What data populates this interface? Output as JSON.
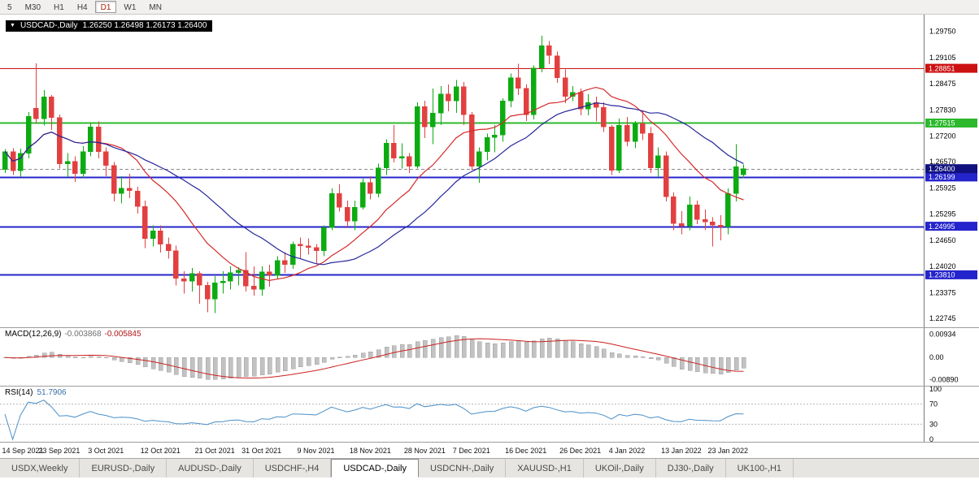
{
  "toolbar": {
    "periods": [
      "5",
      "M30",
      "H1",
      "H4",
      "D1",
      "W1",
      "MN"
    ],
    "active": "D1"
  },
  "chart": {
    "title": "USDCAD-,Daily",
    "ohlc": "1.26250  1.26498  1.26173  1.26400"
  },
  "chart_data": {
    "type": "candlestick",
    "symbol": "USDCAD",
    "timeframe": "Daily",
    "open": "1.26250",
    "high": "1.26498",
    "low": "1.26173",
    "close": "1.26400",
    "price_axis": {
      "max": 1.3016,
      "min": 1.2253,
      "tick_labels": [
        "1.29750",
        "1.29105",
        "1.28475",
        "1.27830",
        "1.27200",
        "1.26570",
        "1.25925",
        "1.25295",
        "1.24650",
        "1.24020",
        "1.23375",
        "1.22745"
      ],
      "tick_values": [
        1.2975,
        1.29105,
        1.28475,
        1.2783,
        1.272,
        1.2657,
        1.25925,
        1.25295,
        1.2465,
        1.2402,
        1.23375,
        1.22745
      ]
    },
    "x_axis": {
      "labels": [
        {
          "text": "14 Sep 2021",
          "bar": 0
        },
        {
          "text": "23 Sep 2021",
          "bar": 7
        },
        {
          "text": "3 Oct 2021",
          "bar": 13
        },
        {
          "text": "12 Oct 2021",
          "bar": 20
        },
        {
          "text": "21 Oct 2021",
          "bar": 27
        },
        {
          "text": "31 Oct 2021",
          "bar": 33
        },
        {
          "text": "9 Nov 2021",
          "bar": 40
        },
        {
          "text": "18 Nov 2021",
          "bar": 47
        },
        {
          "text": "28 Nov 2021",
          "bar": 54
        },
        {
          "text": "7 Dec 2021",
          "bar": 60
        },
        {
          "text": "16 Dec 2021",
          "bar": 67
        },
        {
          "text": "26 Dec 2021",
          "bar": 74
        },
        {
          "text": "4 Jan 2022",
          "bar": 80
        },
        {
          "text": "13 Jan 2022",
          "bar": 87
        },
        {
          "text": "23 Jan 2022",
          "bar": 93
        }
      ]
    },
    "candles": [
      [
        1.2638,
        1.2688,
        1.263,
        1.2682
      ],
      [
        1.2682,
        1.269,
        1.2625,
        1.2635
      ],
      [
        1.2635,
        1.2689,
        1.262,
        1.2678
      ],
      [
        1.2678,
        1.2778,
        1.2665,
        1.2768
      ],
      [
        1.2788,
        1.2897,
        1.275,
        1.2762
      ],
      [
        1.2762,
        1.2832,
        1.2745,
        1.2815
      ],
      [
        1.2815,
        1.282,
        1.2735,
        1.2765
      ],
      [
        1.2765,
        1.2772,
        1.264,
        1.2652
      ],
      [
        1.2652,
        1.2678,
        1.262,
        1.2658
      ],
      [
        1.2658,
        1.267,
        1.2608,
        1.2628
      ],
      [
        1.2628,
        1.2695,
        1.2618,
        1.2682
      ],
      [
        1.2682,
        1.2752,
        1.267,
        1.2742
      ],
      [
        1.2742,
        1.2755,
        1.2665,
        1.2682
      ],
      [
        1.2682,
        1.2692,
        1.2622,
        1.2648
      ],
      [
        1.2648,
        1.2656,
        1.256,
        1.258
      ],
      [
        1.258,
        1.2622,
        1.2555,
        1.2592
      ],
      [
        1.2592,
        1.2628,
        1.2568,
        1.2586
      ],
      [
        1.2586,
        1.2596,
        1.253,
        1.2548
      ],
      [
        1.2548,
        1.2562,
        1.2446,
        1.247
      ],
      [
        1.247,
        1.2502,
        1.245,
        1.2488
      ],
      [
        1.2488,
        1.2502,
        1.2435,
        1.2456
      ],
      [
        1.2456,
        1.2472,
        1.242,
        1.244
      ],
      [
        1.244,
        1.2452,
        1.2355,
        1.2372
      ],
      [
        1.2372,
        1.239,
        1.2335,
        1.2366
      ],
      [
        1.2366,
        1.2398,
        1.234,
        1.2384
      ],
      [
        1.2384,
        1.239,
        1.231,
        1.2356
      ],
      [
        1.2356,
        1.2364,
        1.229,
        1.2322
      ],
      [
        1.2322,
        1.2378,
        1.2288,
        1.2362
      ],
      [
        1.2362,
        1.239,
        1.2335,
        1.2366
      ],
      [
        1.2366,
        1.2402,
        1.2345,
        1.2386
      ],
      [
        1.2386,
        1.24,
        1.2355,
        1.2392
      ],
      [
        1.2392,
        1.2436,
        1.234,
        1.2354
      ],
      [
        1.2354,
        1.2402,
        1.233,
        1.2346
      ],
      [
        1.2346,
        1.2402,
        1.233,
        1.2388
      ],
      [
        1.2388,
        1.2406,
        1.2352,
        1.238
      ],
      [
        1.238,
        1.2426,
        1.237,
        1.2416
      ],
      [
        1.2416,
        1.2436,
        1.2386,
        1.2406
      ],
      [
        1.2406,
        1.2462,
        1.2396,
        1.2456
      ],
      [
        1.2456,
        1.2472,
        1.242,
        1.2452
      ],
      [
        1.2452,
        1.247,
        1.243,
        1.2448
      ],
      [
        1.2448,
        1.2456,
        1.2408,
        1.244
      ],
      [
        1.244,
        1.2502,
        1.2426,
        1.2496
      ],
      [
        1.2496,
        1.2592,
        1.249,
        1.258
      ],
      [
        1.258,
        1.2602,
        1.2535,
        1.2546
      ],
      [
        1.2546,
        1.2562,
        1.2495,
        1.2512
      ],
      [
        1.2512,
        1.2562,
        1.249,
        1.2546
      ],
      [
        1.2546,
        1.2616,
        1.254,
        1.2606
      ],
      [
        1.2606,
        1.2622,
        1.2565,
        1.258
      ],
      [
        1.258,
        1.2652,
        1.257,
        1.2642
      ],
      [
        1.2642,
        1.2712,
        1.2625,
        1.2702
      ],
      [
        1.2702,
        1.2746,
        1.2655,
        1.2666
      ],
      [
        1.2666,
        1.2702,
        1.264,
        1.267
      ],
      [
        1.267,
        1.2678,
        1.263,
        1.2646
      ],
      [
        1.2646,
        1.2802,
        1.264,
        1.2792
      ],
      [
        1.2792,
        1.2806,
        1.2715,
        1.2742
      ],
      [
        1.2742,
        1.2836,
        1.27,
        1.2776
      ],
      [
        1.2776,
        1.2842,
        1.2746,
        1.2822
      ],
      [
        1.2822,
        1.2846,
        1.278,
        1.2806
      ],
      [
        1.2806,
        1.2856,
        1.2776,
        1.284
      ],
      [
        1.284,
        1.2852,
        1.2746,
        1.2772
      ],
      [
        1.2772,
        1.2778,
        1.2636,
        1.2646
      ],
      [
        1.2646,
        1.2692,
        1.2606,
        1.2682
      ],
      [
        1.2682,
        1.2726,
        1.266,
        1.2716
      ],
      [
        1.2716,
        1.2746,
        1.268,
        1.2722
      ],
      [
        1.2722,
        1.2812,
        1.2706,
        1.2806
      ],
      [
        1.2806,
        1.2872,
        1.279,
        1.2862
      ],
      [
        1.2862,
        1.2896,
        1.282,
        1.2836
      ],
      [
        1.2836,
        1.2846,
        1.2756,
        1.2772
      ],
      [
        1.2772,
        1.2892,
        1.276,
        1.2886
      ],
      [
        1.2886,
        1.2964,
        1.2875,
        1.294
      ],
      [
        1.294,
        1.2952,
        1.2895,
        1.2916
      ],
      [
        1.2916,
        1.2926,
        1.285,
        1.2862
      ],
      [
        1.2862,
        1.2882,
        1.28,
        1.2816
      ],
      [
        1.2816,
        1.2842,
        1.2805,
        1.2826
      ],
      [
        1.2826,
        1.2836,
        1.277,
        1.2786
      ],
      [
        1.2786,
        1.2822,
        1.277,
        1.2802
      ],
      [
        1.2802,
        1.2816,
        1.2755,
        1.279
      ],
      [
        1.279,
        1.2802,
        1.273,
        1.2742
      ],
      [
        1.2742,
        1.2746,
        1.2625,
        1.2636
      ],
      [
        1.2636,
        1.2762,
        1.263,
        1.2746
      ],
      [
        1.2746,
        1.2766,
        1.2695,
        1.2706
      ],
      [
        1.2706,
        1.2756,
        1.269,
        1.275
      ],
      [
        1.275,
        1.2782,
        1.271,
        1.2726
      ],
      [
        1.2726,
        1.2742,
        1.263,
        1.2642
      ],
      [
        1.2642,
        1.2692,
        1.262,
        1.2672
      ],
      [
        1.2672,
        1.2682,
        1.256,
        1.2572
      ],
      [
        1.2572,
        1.2582,
        1.249,
        1.2506
      ],
      [
        1.2506,
        1.2536,
        1.248,
        1.25
      ],
      [
        1.25,
        1.2572,
        1.249,
        1.2552
      ],
      [
        1.2552,
        1.2562,
        1.2505,
        1.2516
      ],
      [
        1.2516,
        1.254,
        1.249,
        1.251
      ],
      [
        1.251,
        1.2522,
        1.245,
        1.2502
      ],
      [
        1.2502,
        1.2526,
        1.2465,
        1.2498
      ],
      [
        1.2498,
        1.2592,
        1.248,
        1.258
      ],
      [
        1.258,
        1.27,
        1.256,
        1.2645
      ],
      [
        1.2625,
        1.265,
        1.2617,
        1.264
      ]
    ],
    "levels": [
      {
        "price": 1.28851,
        "label": "1.28851",
        "color": "#cc1111",
        "width": 1
      },
      {
        "price": 1.27515,
        "label": "1.27515",
        "color": "#2db82d",
        "width": 2
      },
      {
        "price": 1.26199,
        "label": "1.26199",
        "color": "#2424cc",
        "width": 2
      },
      {
        "price": 1.24995,
        "label": "1.24995",
        "color": "#2424cc",
        "width": 2
      },
      {
        "price": 1.2381,
        "label": "1.23810",
        "color": "#2424cc",
        "width": 2
      }
    ],
    "current_price": {
      "value": 1.264,
      "label": "1.26400",
      "color": "#10107e"
    },
    "colors": {
      "up": "#0cab12",
      "down": "#e24040",
      "ma_fast": "#d42a2a",
      "ma_slow": "#26269c"
    }
  },
  "macd": {
    "label": "MACD(12,26,9)",
    "value_main": "-0.003868",
    "value_signal": "-0.005845",
    "scale": [
      {
        "label": "0.00934",
        "value": 0.00934
      },
      {
        "label": "0.00",
        "value": 0
      },
      {
        "label": "-0.00890",
        "value": -0.0089
      }
    ],
    "colors": {
      "hist": "#c2c2c2",
      "hist_edge": "#9e9e9e",
      "signal": "#cc2020"
    }
  },
  "rsi": {
    "label": "RSI(14)",
    "value": "51.7906",
    "scale": [
      {
        "label": "100",
        "value": 100
      },
      {
        "label": "70",
        "value": 70
      },
      {
        "label": "30",
        "value": 30
      },
      {
        "label": "0",
        "value": 0
      }
    ],
    "levels": [
      70,
      30
    ],
    "color": "#4a8fc7"
  },
  "tabs": {
    "items": [
      "USDX,Weekly",
      "EURUSD-,Daily",
      "AUDUSD-,Daily",
      "USDCHF-,H4",
      "USDCAD-,Daily",
      "USDCNH-,Daily",
      "XAUUSD-,H1",
      "UKOil-,Daily",
      "DJ30-,Daily",
      "UK100-,H1"
    ],
    "active_index": 4
  }
}
